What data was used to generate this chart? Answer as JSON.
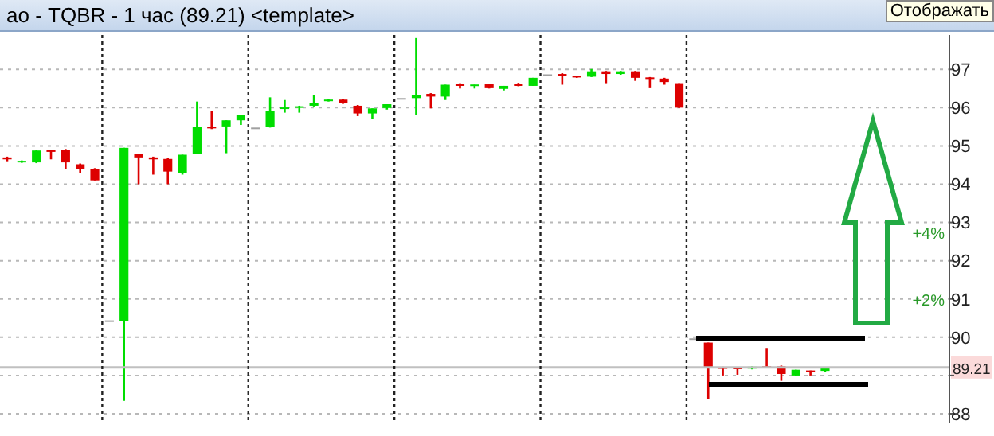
{
  "chart_data": {
    "type": "candlestick",
    "title": "ао - TQBR - 1 час (89.21) <template>",
    "categories": [
      null,
      null,
      null,
      null,
      null,
      null,
      null,
      null,
      null,
      null,
      null,
      null,
      null,
      null,
      null,
      null,
      null,
      null,
      null,
      null,
      null,
      null,
      null,
      null,
      null,
      null,
      null,
      null,
      null,
      null,
      null,
      null,
      null,
      null,
      null,
      null,
      null,
      null,
      null,
      null,
      null,
      null,
      null,
      null,
      null,
      null,
      null,
      null,
      null,
      null,
      null,
      null,
      null,
      null,
      null,
      null,
      null,
      null,
      null,
      null,
      null,
      null,
      null,
      null,
      null
    ],
    "ohlc": [
      [
        94.7,
        94.72,
        94.6,
        94.65
      ],
      [
        94.58,
        94.62,
        94.56,
        94.6
      ],
      [
        94.57,
        94.9,
        94.55,
        94.88
      ],
      [
        94.88,
        94.88,
        94.65,
        94.85
      ],
      [
        94.9,
        94.92,
        94.4,
        94.57
      ],
      [
        94.52,
        94.54,
        94.3,
        94.4
      ],
      [
        94.4,
        94.42,
        94.1,
        94.1
      ],
      [
        90.42,
        90.42,
        90.42,
        90.42
      ],
      [
        90.42,
        94.95,
        88.34,
        94.95
      ],
      [
        94.78,
        94.8,
        94.0,
        94.7
      ],
      [
        94.7,
        94.72,
        94.25,
        94.65
      ],
      [
        94.66,
        94.68,
        94.0,
        94.33
      ],
      [
        94.29,
        94.77,
        94.25,
        94.77
      ],
      [
        94.8,
        96.16,
        94.78,
        95.5
      ],
      [
        95.5,
        95.92,
        95.44,
        95.46
      ],
      [
        95.51,
        95.67,
        94.81,
        95.67
      ],
      [
        95.67,
        95.81,
        95.55,
        95.81
      ],
      [
        95.46,
        95.46,
        95.46,
        95.46
      ],
      [
        95.5,
        96.27,
        95.48,
        95.92
      ],
      [
        95.97,
        96.2,
        95.87,
        96.0
      ],
      [
        96.0,
        96.05,
        95.87,
        96.03
      ],
      [
        96.05,
        96.32,
        96.03,
        96.13
      ],
      [
        96.18,
        96.22,
        96.16,
        96.2
      ],
      [
        96.21,
        96.23,
        96.1,
        96.13
      ],
      [
        96.05,
        96.07,
        95.78,
        95.85
      ],
      [
        95.85,
        95.98,
        95.71,
        95.98
      ],
      [
        95.99,
        96.09,
        95.95,
        96.09
      ],
      [
        96.23,
        96.23,
        96.23,
        96.23
      ],
      [
        96.25,
        97.82,
        95.81,
        96.32
      ],
      [
        96.36,
        96.38,
        95.98,
        96.29
      ],
      [
        96.29,
        96.6,
        96.2,
        96.6
      ],
      [
        96.6,
        96.64,
        96.5,
        96.58
      ],
      [
        96.57,
        96.6,
        96.5,
        96.6
      ],
      [
        96.61,
        96.63,
        96.5,
        96.53
      ],
      [
        96.49,
        96.57,
        96.45,
        96.57
      ],
      [
        96.6,
        96.65,
        96.56,
        96.58
      ],
      [
        96.57,
        96.78,
        96.57,
        96.78
      ],
      [
        96.85,
        96.85,
        96.85,
        96.85
      ],
      [
        96.88,
        96.9,
        96.6,
        96.82
      ],
      [
        96.82,
        96.83,
        96.78,
        96.8
      ],
      [
        96.81,
        97.01,
        96.8,
        96.95
      ],
      [
        96.95,
        96.96,
        96.64,
        96.88
      ],
      [
        96.88,
        96.96,
        96.86,
        96.95
      ],
      [
        96.95,
        96.96,
        96.7,
        96.78
      ],
      [
        96.78,
        96.8,
        96.53,
        96.76
      ],
      [
        96.76,
        96.78,
        96.6,
        96.67
      ],
      [
        96.64,
        96.64,
        95.99,
        96.0
      ],
      [
        89.95,
        89.95,
        89.95,
        89.95
      ],
      [
        89.86,
        89.86,
        88.38,
        89.21
      ],
      [
        89.21,
        89.23,
        89.0,
        89.18
      ],
      [
        89.2,
        89.22,
        89.02,
        89.17
      ],
      [
        89.18,
        89.24,
        89.16,
        89.23
      ],
      [
        89.23,
        89.7,
        89.2,
        89.21
      ],
      [
        89.24,
        89.26,
        88.86,
        89.04
      ],
      [
        89.0,
        89.15,
        88.98,
        89.15
      ],
      [
        89.12,
        89.13,
        89.0,
        89.1
      ],
      [
        89.12,
        89.21,
        89.1,
        89.21
      ],
      null,
      null,
      null,
      null,
      null,
      null,
      null,
      null
    ],
    "colors": [
      "#dd0000",
      "#00dd00",
      "#00dd00",
      "#dd0000",
      "#dd0000",
      "#dd0000",
      "#dd0000",
      "#a0a0a0",
      "#00dd00",
      "#dd0000",
      "#dd0000",
      "#dd0000",
      "#00dd00",
      "#00dd00",
      "#dd0000",
      "#00dd00",
      "#00dd00",
      "#a0a0a0",
      "#00dd00",
      "#00dd00",
      "#00dd00",
      "#00dd00",
      "#00dd00",
      "#dd0000",
      "#dd0000",
      "#00dd00",
      "#00dd00",
      "#a0a0a0",
      "#00dd00",
      "#dd0000",
      "#00dd00",
      "#dd0000",
      "#00dd00",
      "#dd0000",
      "#00dd00",
      "#dd0000",
      "#00dd00",
      "#a0a0a0",
      "#dd0000",
      "#dd0000",
      "#00dd00",
      "#dd0000",
      "#00dd00",
      "#dd0000",
      "#dd0000",
      "#dd0000",
      "#dd0000",
      "#a0a0a0",
      "#dd0000",
      "#dd0000",
      "#dd0000",
      "#00dd00",
      "#dd0000",
      "#dd0000",
      "#00dd00",
      "#dd0000",
      "#00dd00",
      null,
      null,
      null,
      null,
      null,
      null,
      null,
      null
    ],
    "ylim": [
      87.75,
      97.9
    ],
    "yticks": [
      88,
      {
        "value": 89,
        "label": null
      },
      90,
      91,
      92,
      93,
      94,
      95,
      96,
      97
    ],
    "grid": "y",
    "legend": false,
    "ref_lines": [
      {
        "axis": "y",
        "value": 89.21,
        "label": "89.21",
        "color": "#c0c0c0"
      }
    ],
    "annotations": [
      "+4%",
      "+2%",
      "Отображать"
    ]
  }
}
